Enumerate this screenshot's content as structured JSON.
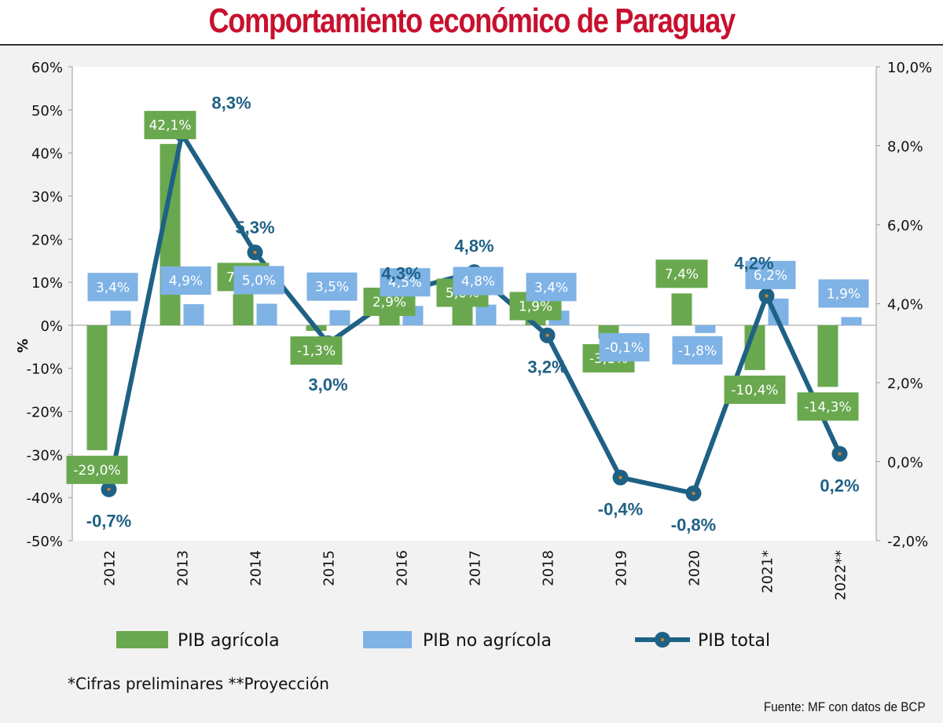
{
  "title": "Comportamiento económico de Paraguay",
  "note": "*Cifras preliminares **Proyección",
  "source": "Fuente: MF con datos de BCP",
  "colors": {
    "agricola": "#6aa84f",
    "no_agricola": "#7fb2e5",
    "total": "#1f6185",
    "title": "#c8102e"
  },
  "chart_data": {
    "type": "bar",
    "categories": [
      "2012",
      "2013",
      "2014",
      "2015",
      "2016",
      "2017",
      "2018",
      "2019",
      "2020",
      "2021*",
      "2022**"
    ],
    "ylabel": "%",
    "y_left": {
      "min": -50,
      "max": 60,
      "step": 10,
      "ticks": [
        "-50%",
        "-40%",
        "-30%",
        "-20%",
        "-10%",
        "0%",
        "10%",
        "20%",
        "30%",
        "40%",
        "50%",
        "60%"
      ]
    },
    "y_right": {
      "min": -2,
      "max": 10,
      "step": 2,
      "ticks": [
        "-2,0%",
        "0,0%",
        "2,0%",
        "4,0%",
        "6,0%",
        "8,0%",
        "10,0%"
      ]
    },
    "series": [
      {
        "name": "PIB agrícola",
        "type": "bar",
        "axis": "left",
        "values": [
          -29.0,
          42.1,
          7.2,
          -1.3,
          2.9,
          5.0,
          1.9,
          -3.1,
          7.4,
          -10.4,
          -14.3
        ],
        "labels": [
          "-29,0%",
          "42,1%",
          "7,2%",
          "-1,3%",
          "2,9%",
          "5,0%",
          "1,9%",
          "-3,1%",
          "7,4%",
          "-10,4%",
          "-14,3%"
        ]
      },
      {
        "name": "PIB no agrícola",
        "type": "bar",
        "axis": "left",
        "values": [
          3.4,
          4.9,
          5.0,
          3.5,
          4.5,
          4.8,
          3.4,
          -0.1,
          -1.8,
          6.2,
          1.9
        ],
        "labels": [
          "3,4%",
          "4,9%",
          "5,0%",
          "3,5%",
          "4,5%",
          "4,8%",
          "3,4%",
          "-0,1%",
          "-1,8%",
          "6,2%",
          "1,9%"
        ]
      },
      {
        "name": "PIB total",
        "type": "line",
        "axis": "right",
        "values": [
          -0.7,
          8.3,
          5.3,
          3.0,
          4.3,
          4.8,
          3.2,
          -0.4,
          -0.8,
          4.2,
          0.2
        ],
        "labels": [
          "-0,7%",
          "8,3%",
          "5,3%",
          "3,0%",
          "4,3%",
          "4,8%",
          "3,2%",
          "-0,4%",
          "-0,8%",
          "4,2%",
          "0,2%"
        ]
      }
    ],
    "legend": "bottom",
    "grid": false
  }
}
